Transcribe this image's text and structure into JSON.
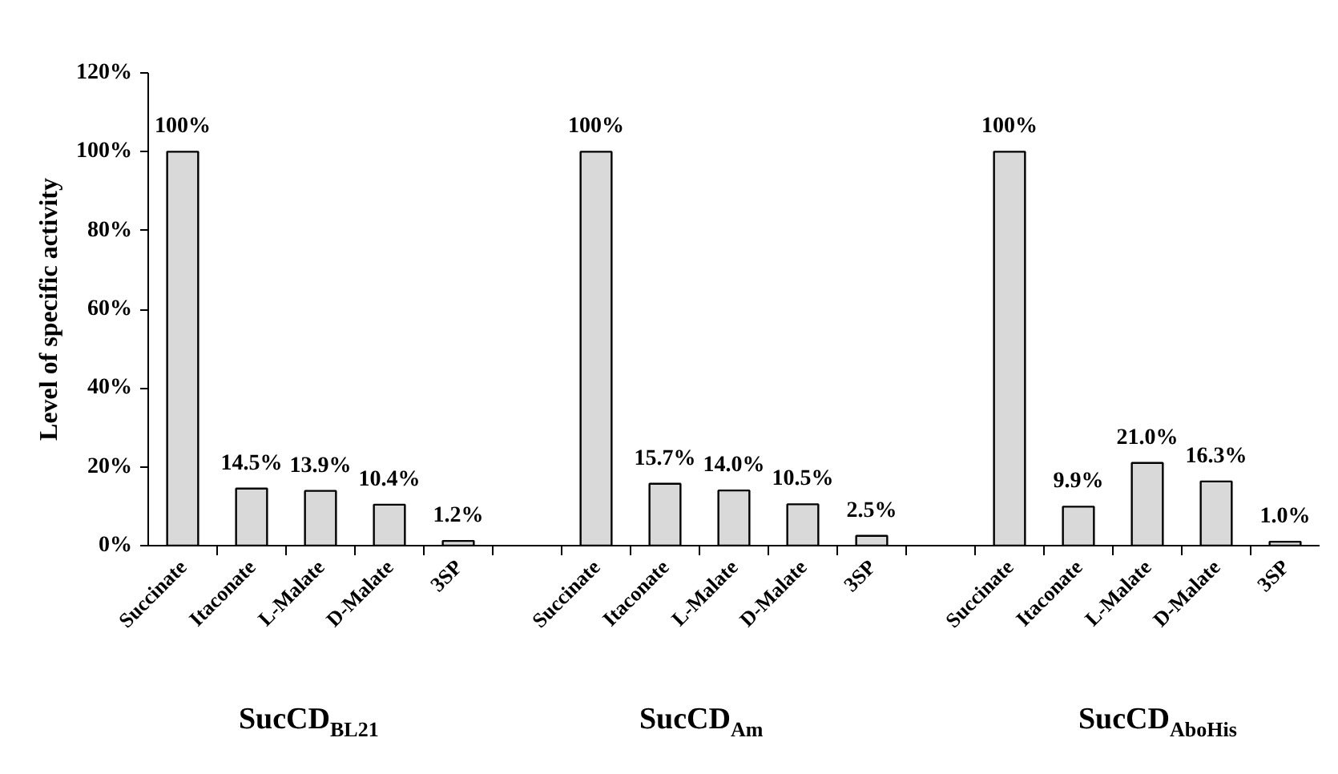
{
  "chart_data": {
    "type": "bar",
    "ylabel": "Level of specific activity",
    "categories": [
      "Succinate",
      "Itaconate",
      "L-Malate",
      "D-Malate",
      "3SP",
      null,
      "Succinate",
      "Itaconate",
      "L-Malate",
      "D-Malate",
      "3SP",
      null,
      "Succinate",
      "Itaconate",
      "L-Malate",
      "D-Malate",
      "3SP"
    ],
    "values": [
      100,
      14.5,
      13.9,
      10.4,
      1.2,
      null,
      100,
      15.7,
      14.0,
      10.5,
      2.5,
      null,
      100,
      9.9,
      21.0,
      16.3,
      1.0
    ],
    "value_labels": [
      "100%",
      "14.5%",
      "13.9%",
      "10.4%",
      "1.2%",
      null,
      "100%",
      "15.7%",
      "14.0%",
      "10.5%",
      "2.5%",
      null,
      "100%",
      "9.9%",
      "21.0%",
      "16.3%",
      "1.0%"
    ],
    "color": "#d9d9d9",
    "ylim": [
      0,
      120
    ],
    "yticks": [
      {
        "value": 0,
        "label": "0%"
      },
      {
        "value": 20,
        "label": "20%"
      },
      {
        "value": 40,
        "label": "40%"
      },
      {
        "value": 60,
        "label": "60%"
      },
      {
        "value": 80,
        "label": "80%"
      },
      {
        "value": 100,
        "label": "100%"
      },
      {
        "value": 120,
        "label": "120%"
      }
    ],
    "annotations": [
      "SucCD$_{BL21}$",
      "SucCD$_{Am}$",
      "SucCD$_{AboHis}$"
    ]
  }
}
